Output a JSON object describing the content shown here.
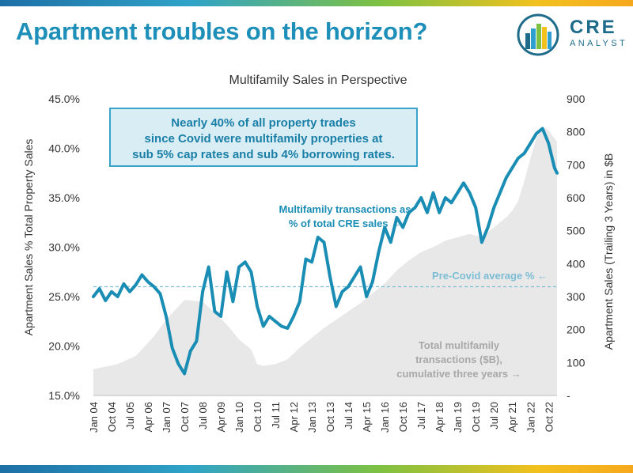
{
  "header": {
    "title": "Apartment troubles on the horizon?"
  },
  "logo": {
    "name": "CRE",
    "tagline": "ANALYST",
    "icon": "cre-analyst-logo"
  },
  "colors": {
    "brand": "#1d8fb8",
    "line": "#1a8db4",
    "area": "#e8e8e8",
    "reference": "#7cbdd4",
    "callout_border": "#3ba3c9",
    "callout_fill": "#d9edf5"
  },
  "chart_data": {
    "type": "line",
    "title": "Multifamily Sales in Perspective",
    "ylabel": "Apartment Sales % Total Property Sales",
    "y2label": "Apartment Sales (Trailing 3 Years) in $B",
    "ylim": [
      15,
      45
    ],
    "y2lim": [
      0,
      900
    ],
    "yticks": [
      "15.0%",
      "20.0%",
      "25.0%",
      "30.0%",
      "35.0%",
      "40.0%",
      "45.0%"
    ],
    "y2ticks": [
      "-",
      "100",
      "200",
      "300",
      "400",
      "500",
      "600",
      "700",
      "800",
      "900"
    ],
    "x_labels": [
      "Jan 04",
      "Oct 04",
      "Jul 05",
      "Apr 06",
      "Jan 07",
      "Oct 07",
      "Jul 08",
      "Apr 09",
      "Jan 10",
      "Oct 10",
      "Jul 11",
      "Apr 12",
      "Jan 13",
      "Oct 13",
      "Jul 14",
      "Apr 15",
      "Jan 16",
      "Oct 16",
      "Jul 17",
      "Apr 18",
      "Jan 19",
      "Oct 19",
      "Jul 20",
      "Apr 21",
      "Jan 22",
      "Oct 22"
    ],
    "reference_value": 26.0,
    "series": [
      {
        "name": "Multifamily transactions as % of total CRE sales",
        "axis": "left",
        "x": [
          2004.0,
          2004.25,
          2004.5,
          2004.75,
          2005.0,
          2005.25,
          2005.5,
          2005.75,
          2006.0,
          2006.25,
          2006.5,
          2006.75,
          2007.0,
          2007.25,
          2007.5,
          2007.75,
          2008.0,
          2008.25,
          2008.5,
          2008.75,
          2009.0,
          2009.25,
          2009.5,
          2009.75,
          2010.0,
          2010.25,
          2010.5,
          2010.75,
          2011.0,
          2011.25,
          2011.5,
          2011.75,
          2012.0,
          2012.25,
          2012.5,
          2012.75,
          2013.0,
          2013.25,
          2013.5,
          2013.75,
          2014.0,
          2014.25,
          2014.5,
          2014.75,
          2015.0,
          2015.25,
          2015.5,
          2015.75,
          2016.0,
          2016.25,
          2016.5,
          2016.75,
          2017.0,
          2017.25,
          2017.5,
          2017.75,
          2018.0,
          2018.25,
          2018.5,
          2018.75,
          2019.0,
          2019.25,
          2019.5,
          2019.75,
          2020.0,
          2020.25,
          2020.5,
          2020.75,
          2021.0,
          2021.25,
          2021.5,
          2021.75,
          2022.0,
          2022.25,
          2022.5,
          2022.75,
          2023.0,
          2023.1
        ],
        "values": [
          25.0,
          25.8,
          24.6,
          25.5,
          25.0,
          26.3,
          25.5,
          26.2,
          27.2,
          26.5,
          26.0,
          25.3,
          23.0,
          19.8,
          18.2,
          17.2,
          19.5,
          20.5,
          25.5,
          28.0,
          23.5,
          23.0,
          27.5,
          24.5,
          28.0,
          28.5,
          27.5,
          24.0,
          22.0,
          23.0,
          22.5,
          22.0,
          21.8,
          23.0,
          24.5,
          28.8,
          28.5,
          31.0,
          30.5,
          27.0,
          24.0,
          25.5,
          26.0,
          27.0,
          28.0,
          25.0,
          26.5,
          29.5,
          32.0,
          30.5,
          33.0,
          32.0,
          33.5,
          34.0,
          35.0,
          33.5,
          35.5,
          33.5,
          35.0,
          34.5,
          35.5,
          36.5,
          35.5,
          34.0,
          30.5,
          32.0,
          34.0,
          35.5,
          37.0,
          38.0,
          39.0,
          39.5,
          40.5,
          41.5,
          42.0,
          40.5,
          38.0,
          37.5
        ]
      },
      {
        "name": "Total multifamily transactions ($B), cumulative three years",
        "axis": "right",
        "x": [
          2004.0,
          2005.0,
          2005.75,
          2006.5,
          2007.0,
          2007.5,
          2007.75,
          2008.5,
          2009.0,
          2009.5,
          2010.0,
          2010.5,
          2010.75,
          2011.0,
          2011.5,
          2012.0,
          2012.5,
          2013.0,
          2013.5,
          2014.0,
          2014.5,
          2015.0,
          2015.5,
          2016.0,
          2016.5,
          2017.0,
          2017.5,
          2018.0,
          2018.5,
          2019.0,
          2019.5,
          2020.0,
          2020.5,
          2021.0,
          2021.25,
          2021.5,
          2021.75,
          2022.0,
          2022.25,
          2022.5,
          2022.75,
          2023.0,
          2023.1
        ],
        "values": [
          80,
          95,
          120,
          180,
          230,
          270,
          290,
          285,
          250,
          215,
          170,
          140,
          95,
          90,
          95,
          110,
          145,
          175,
          205,
          230,
          255,
          280,
          310,
          340,
          380,
          410,
          435,
          450,
          470,
          480,
          490,
          480,
          510,
          540,
          560,
          590,
          650,
          720,
          780,
          815,
          805,
          780,
          770
        ]
      }
    ],
    "annotations": {
      "callout": "Nearly 40% of all property trades since Covid were multifamily properties at sub 5% cap rates and sub 4% borrowing rates.",
      "series_label_1": "Multifamily transactions as",
      "series_label_2": "% of total CRE sales ←",
      "reference_label": "Pre-Covid average % ←",
      "area_label_1": "Total multifamily",
      "area_label_2": "transactions ($B),",
      "area_label_3": "cumulative three years →"
    },
    "grid": false,
    "legend": "none"
  }
}
